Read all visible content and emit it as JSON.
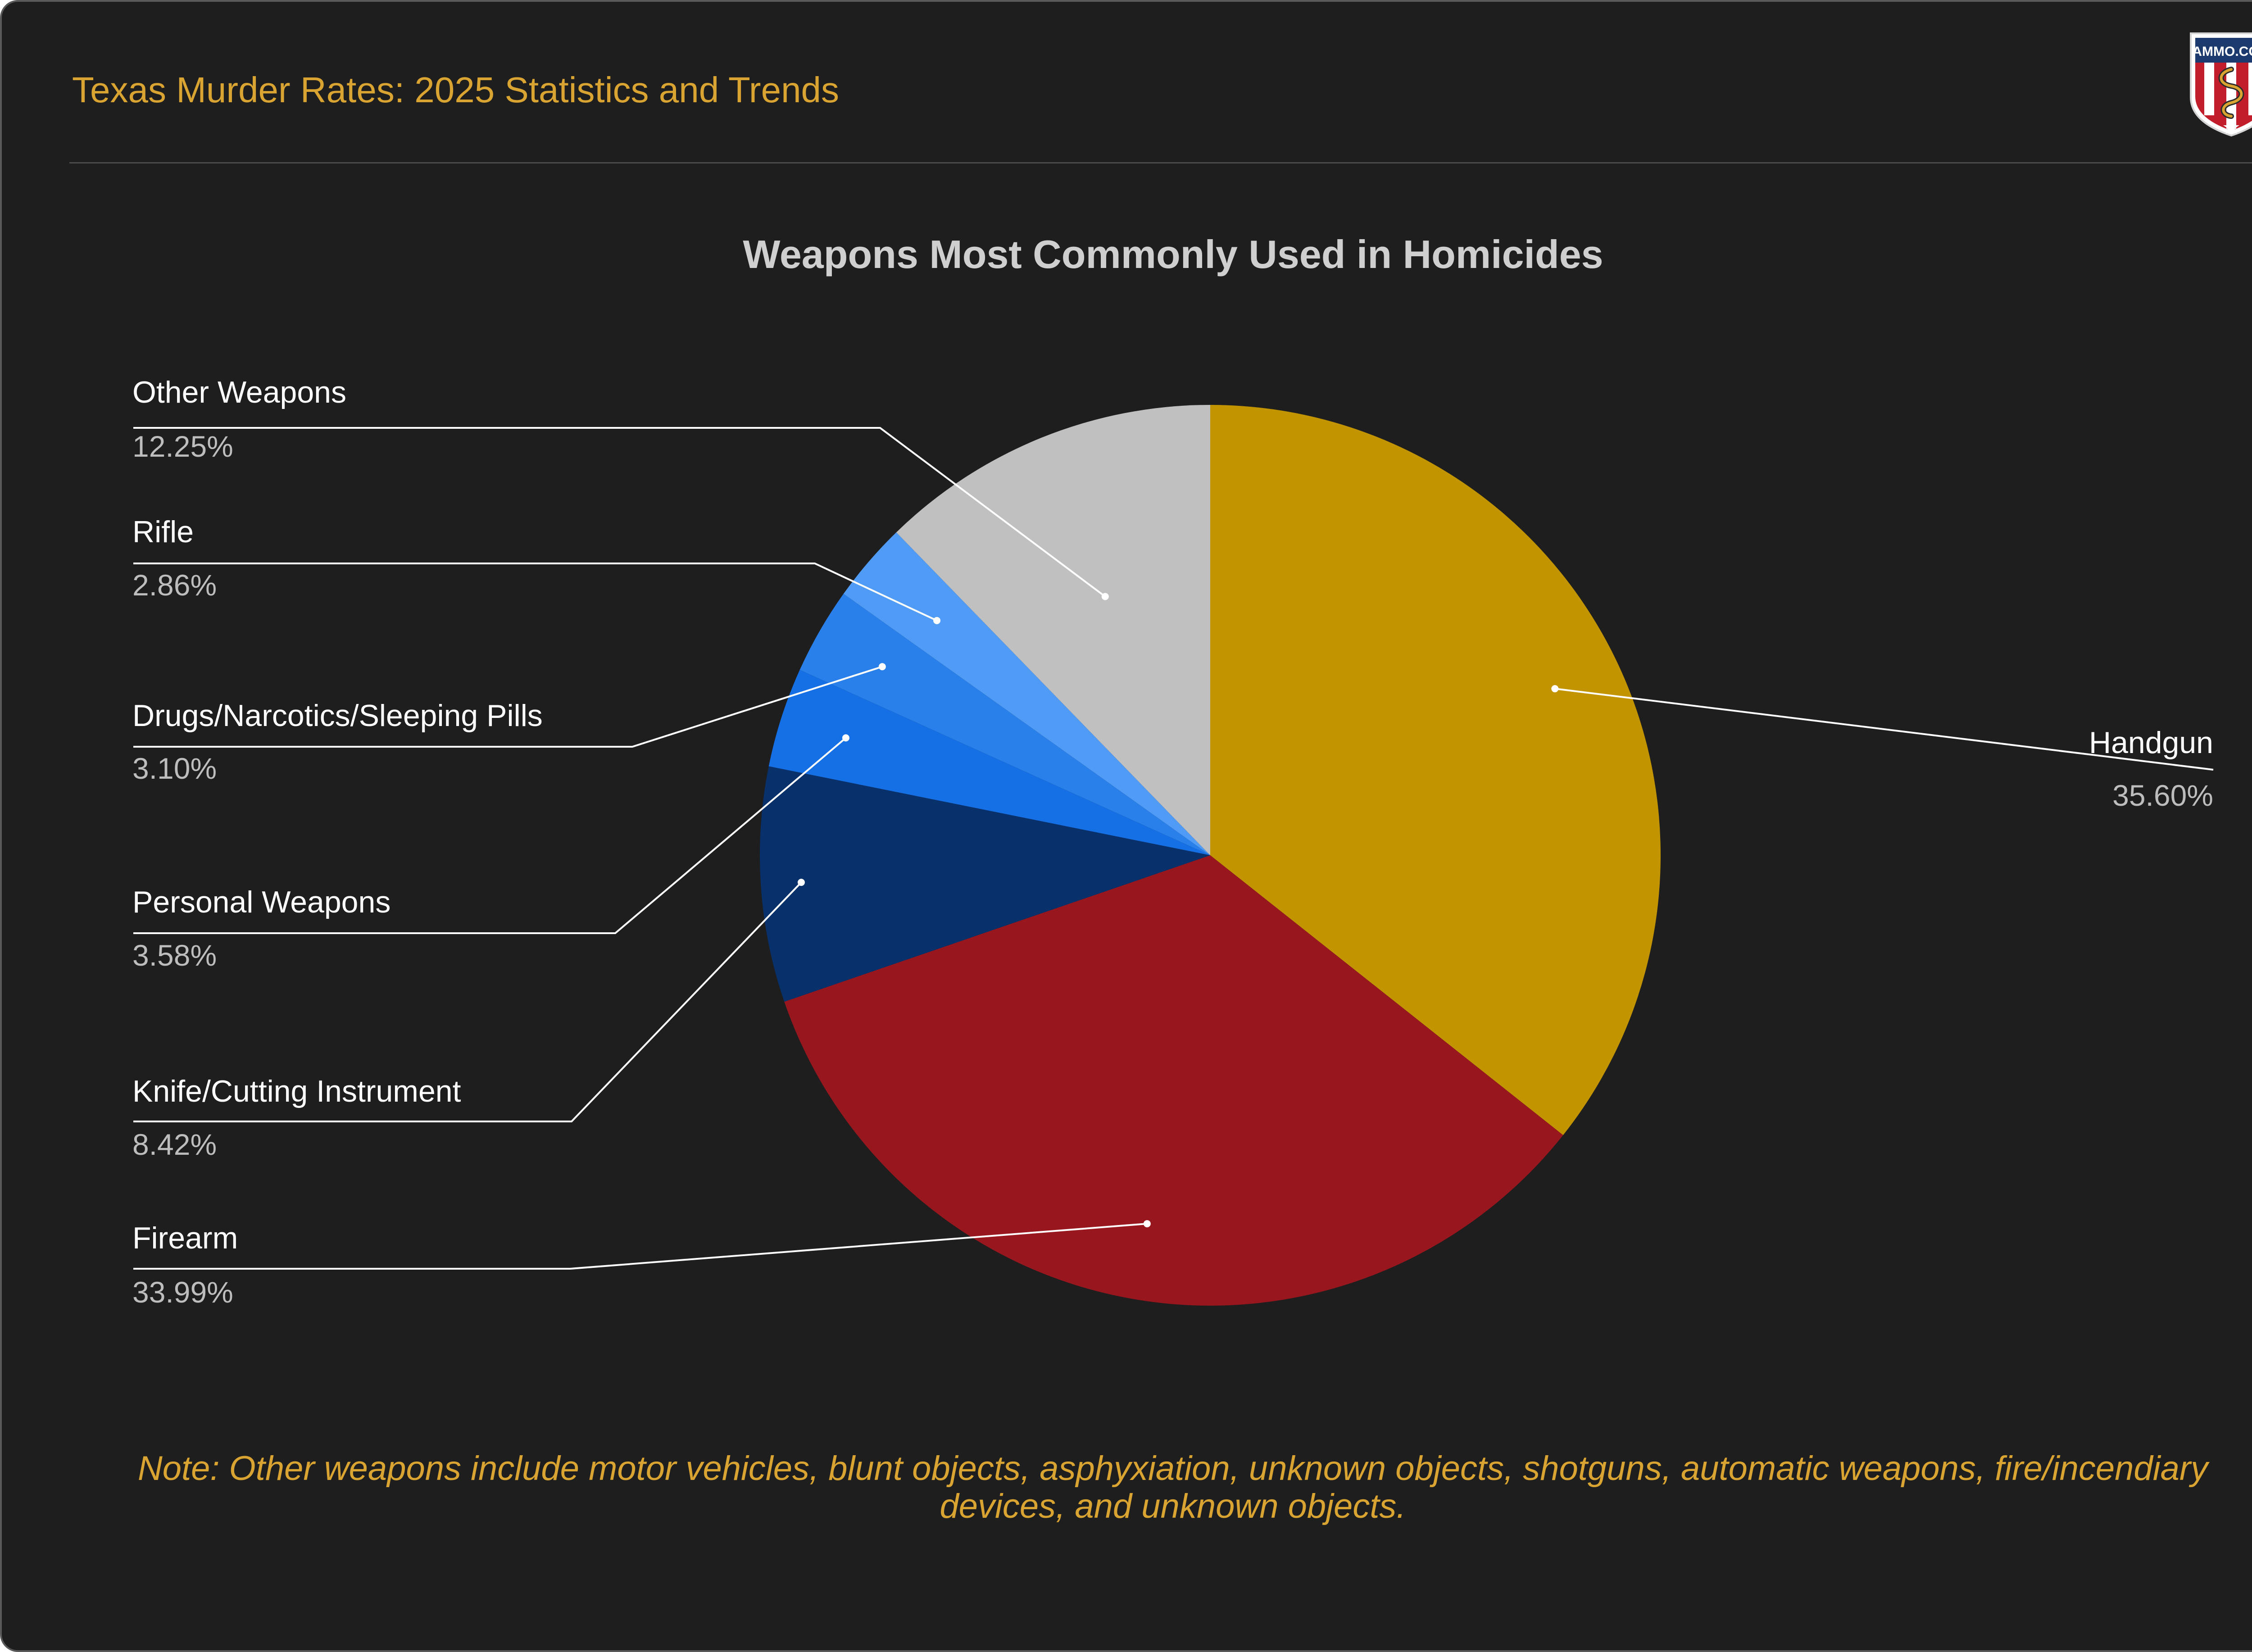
{
  "header": {
    "title": "Texas Murder Rates: 2025 Statistics and Trends",
    "logo_text": "AMMO.COM"
  },
  "chart_data": {
    "type": "pie",
    "title": "Weapons Most Commonly Used in Homicides",
    "start": "12 o'clock, clockwise",
    "slices": [
      {
        "label": "Handgun",
        "value": 35.6,
        "value_label": "35.60%",
        "color": "#c19400"
      },
      {
        "label": "Firearm",
        "value": 33.99,
        "value_label": "33.99%",
        "color": "#98161e"
      },
      {
        "label": "Knife/Cutting Instrument",
        "value": 8.42,
        "value_label": "8.42%",
        "color": "#08306b"
      },
      {
        "label": "Personal Weapons",
        "value": 3.58,
        "value_label": "3.58%",
        "color": "#1570e6"
      },
      {
        "label": "Drugs/Narcotics/Sleeping Pills",
        "value": 3.1,
        "value_label": "3.10%",
        "color": "#2a80ea"
      },
      {
        "label": "Rifle",
        "value": 2.86,
        "value_label": "2.86%",
        "color": "#4f9bf5"
      },
      {
        "label": "Other Weapons",
        "value": 12.25,
        "value_label": "12.25%",
        "color": "#c0c0c0"
      }
    ]
  },
  "note": "Note: Other weapons include motor vehicles, blunt objects, asphyxiation, unknown objects, shotguns, automatic weapons, fire/incendiary devices, and unknown objects."
}
